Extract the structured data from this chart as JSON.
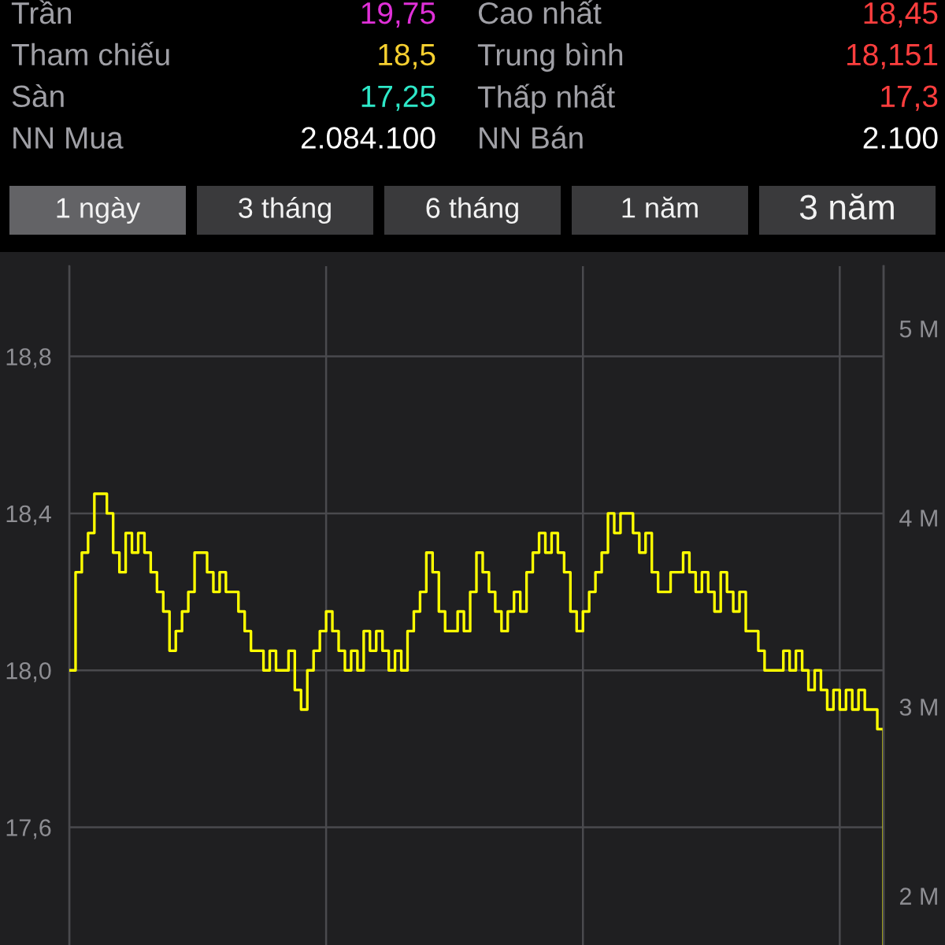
{
  "chart_data": [
    {
      "type": "other",
      "annotations": [
        "Trần",
        "19,75",
        "Cao nhất",
        "18,45",
        "Tham chiếu",
        "18,5",
        "Trung bình",
        "18,151",
        "Sàn",
        "17,25",
        "Thấp nhất",
        "17,3",
        "NN Mua",
        "2.084.100",
        "NN Bán",
        "2.100",
        "1 ngày",
        "3 tháng",
        "6 tháng",
        "1 năm",
        "3 năm"
      ]
    },
    {
      "type": "step",
      "categories": [
        null,
        null,
        null,
        null,
        null,
        null,
        null,
        null,
        null,
        null,
        null,
        null,
        null,
        null,
        null,
        null,
        null,
        null,
        null,
        null,
        null,
        null,
        null,
        null,
        null,
        null,
        null,
        null,
        null,
        null,
        null,
        null,
        null,
        null,
        null,
        null,
        null,
        null,
        null,
        null,
        null,
        null,
        null,
        null,
        null,
        null,
        null,
        null,
        null,
        null,
        null,
        null,
        null,
        null,
        null,
        null,
        null,
        null,
        null,
        null,
        null,
        null,
        null,
        null,
        null,
        null,
        null,
        null,
        null,
        null,
        null,
        null,
        null,
        null,
        null,
        null,
        null,
        null,
        null,
        null,
        null,
        null,
        null,
        null,
        null,
        null,
        null,
        null,
        null,
        null,
        null,
        null,
        null,
        null,
        null,
        null,
        null,
        null,
        null,
        null,
        null,
        null,
        null,
        null,
        null,
        null,
        null,
        null,
        null,
        null,
        null,
        null,
        null,
        null,
        null,
        null,
        null,
        null,
        null,
        null,
        null,
        null,
        null,
        null,
        null,
        null,
        null,
        null,
        null,
        null,
        null
      ],
      "series": [
        {
          "color": "#ffff00",
          "values": [
            18.0,
            18.25,
            18.3,
            18.35,
            18.45,
            18.45,
            18.4,
            18.3,
            18.25,
            18.35,
            18.3,
            18.35,
            18.3,
            18.25,
            18.2,
            18.15,
            18.05,
            18.1,
            18.15,
            18.2,
            18.3,
            18.3,
            18.25,
            18.2,
            18.25,
            18.2,
            18.2,
            18.15,
            18.1,
            18.05,
            18.05,
            18.0,
            18.05,
            18.0,
            18.0,
            18.05,
            17.95,
            17.9,
            18.0,
            18.05,
            18.1,
            18.15,
            18.1,
            18.05,
            18.0,
            18.05,
            18.0,
            18.1,
            18.05,
            18.1,
            18.05,
            18.0,
            18.05,
            18.0,
            18.1,
            18.15,
            18.2,
            18.3,
            18.25,
            18.15,
            18.1,
            18.1,
            18.15,
            18.1,
            18.2,
            18.3,
            18.25,
            18.2,
            18.15,
            18.1,
            18.15,
            18.2,
            18.15,
            18.25,
            18.3,
            18.35,
            18.3,
            18.35,
            18.3,
            18.25,
            18.15,
            18.1,
            18.15,
            18.2,
            18.25,
            18.3,
            18.4,
            18.35,
            18.4,
            18.4,
            18.35,
            18.3,
            18.35,
            18.25,
            18.2,
            18.2,
            18.25,
            18.25,
            18.3,
            18.25,
            18.2,
            18.25,
            18.2,
            18.15,
            18.25,
            18.2,
            18.15,
            18.2,
            18.1,
            18.1,
            18.05,
            18.0,
            18.0,
            18.0,
            18.05,
            18.0,
            18.05,
            18.0,
            17.95,
            18.0,
            17.95,
            17.9,
            17.95,
            17.9,
            17.95,
            17.9,
            17.95,
            17.9,
            17.9,
            17.85,
            17.3
          ]
        }
      ],
      "ylim": [
        17.3,
        19.03
      ],
      "yticks": [
        {
          "value": 17.6,
          "label": "17,6"
        },
        {
          "value": 18.0,
          "label": "18,0"
        },
        {
          "value": 18.4,
          "label": "18,4"
        },
        {
          "value": 18.8,
          "label": "18,8"
        }
      ],
      "y2lim": [
        1.74,
        5.33
      ],
      "y2ticks": [
        {
          "value": 2,
          "label": "2 M"
        },
        {
          "value": 3,
          "label": "3 M"
        },
        {
          "value": 4,
          "label": "4 M"
        },
        {
          "value": 5,
          "label": "5 M"
        }
      ],
      "grid": true,
      "tick_labels": "y"
    }
  ]
}
